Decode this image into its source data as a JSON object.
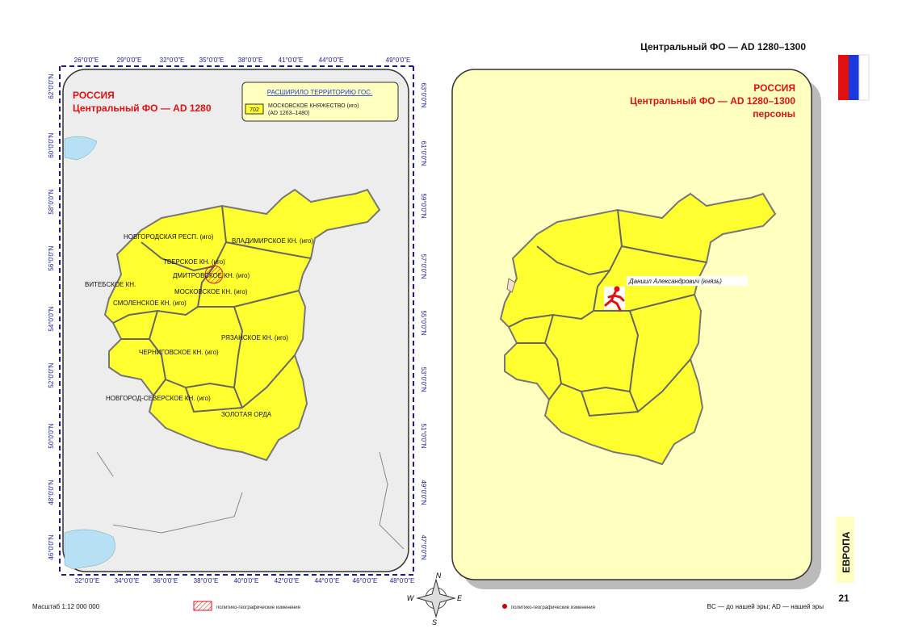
{
  "header": {
    "title": "Центральный ФО — AD 1280–1300"
  },
  "left_map": {
    "title": "РОССИЯ",
    "subtitle": "Центральный ФО — AD 1280",
    "legend": {
      "heading": "РАСШИРИЛО ТЕРРИТОРИЮ ГОС.",
      "code": "702",
      "entity": "МОСКОВСКОЕ КНЯЖЕСТВО (иго)",
      "period": "(AD 1263–1480)"
    },
    "top_axis": [
      "26°0'0\"E",
      "29°0'0\"E",
      "32°0'0\"E",
      "35°0'0\"E",
      "38°0'0\"E",
      "41°0'0\"E",
      "44°0'0\"E",
      "49°0'0\"E"
    ],
    "bottom_axis": [
      "32°0'0\"E",
      "34°0'0\"E",
      "36°0'0\"E",
      "38°0'0\"E",
      "40°0'0\"E",
      "42°0'0\"E",
      "44°0'0\"E",
      "46°0'0\"E",
      "48°0'0\"E"
    ],
    "left_axis": [
      "62°0'0\"N",
      "60°0'0\"N",
      "58°0'0\"N",
      "56°0'0\"N",
      "54°0'0\"N",
      "52°0'0\"N",
      "50°0'0\"N",
      "48°0'0\"N",
      "46°0'0\"N"
    ],
    "right_axis": [
      "63°0'0\"N",
      "61°0'0\"N",
      "59°0'0\"N",
      "57°0'0\"N",
      "55°0'0\"N",
      "53°0'0\"N",
      "51°0'0\"N",
      "49°0'0\"N",
      "47°0'0\"N"
    ],
    "regions": [
      "НОВГОРОДСКАЯ РЕСП. (иго)",
      "ВЛАДИМИРСКОЕ КН. (иго)",
      "ТВЕРСКОЕ КН. (иго)",
      "ДМИТРОВСКОЕ КН. (иго)",
      "ВИТЕБСКОЕ КН.",
      "МОСКОВСКОЕ КН. (иго)",
      "СМОЛЕНСКОЕ КН. (иго)",
      "РЯЗАНСКОЕ КН. (иго)",
      "ЧЕРНИГОВСКОЕ КН. (иго)",
      "НОВГОРОД-СЕВЕРСКОЕ КН. (иго)",
      "ЗОЛОТАЯ ОРДА"
    ]
  },
  "right_map": {
    "title": "РОССИЯ",
    "subtitle": "Центральный ФО — AD 1280–1300",
    "subject": "персоны",
    "person": "Даниил Александрович (князь)"
  },
  "compass": [
    "N",
    "W",
    "E",
    "S"
  ],
  "footer": {
    "scale": "Масштаб 1:12 000 000",
    "legend_left": "политико-географические изменения",
    "legend_right": "политико-географические изменения",
    "note": "BC — до нашей эры; AD — нашей эры"
  },
  "side_tab": {
    "section": "ЕВРОПА",
    "page": "21"
  }
}
